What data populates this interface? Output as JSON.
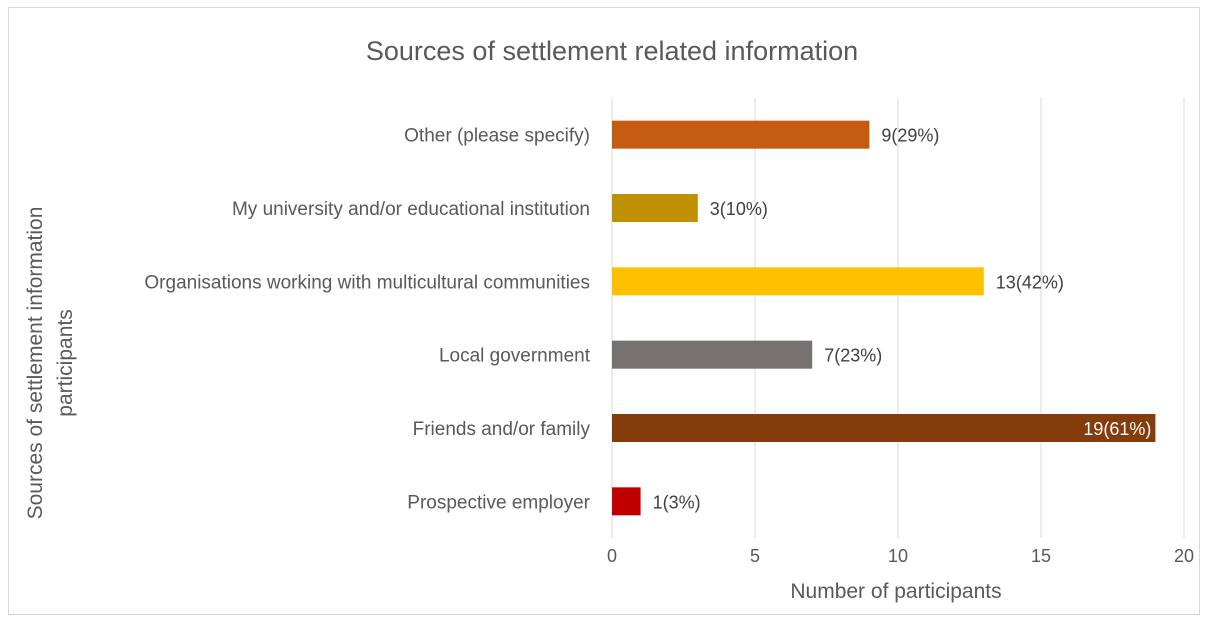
{
  "chart_data": {
    "type": "bar",
    "orientation": "horizontal",
    "title": "Sources of settlement related information",
    "xlabel": "Number of participants",
    "ylabel": "Sources of settlement information participants",
    "ylabel_lines": [
      "Sources of settlement information",
      "participants"
    ],
    "xlim": [
      0,
      20
    ],
    "xticks": [
      "0",
      "5",
      "10",
      "15",
      "20"
    ],
    "grid": true,
    "legend": "none",
    "categories": [
      "Other (please specify)",
      "My university and/or educational institution",
      "Organisations working with multicultural communities",
      "Local government",
      "Friends and/or family",
      "Prospective employer"
    ],
    "values": [
      9,
      3,
      13,
      7,
      19,
      1
    ],
    "data_labels": [
      "9(29%)",
      "3(10%)",
      "13(42%)",
      "7(23%)",
      "19(61%)",
      "1(3%)"
    ],
    "colors": [
      "#C55A11",
      "#BF9000",
      "#FFC000",
      "#767171",
      "#843C0C",
      "#C00000"
    ]
  }
}
